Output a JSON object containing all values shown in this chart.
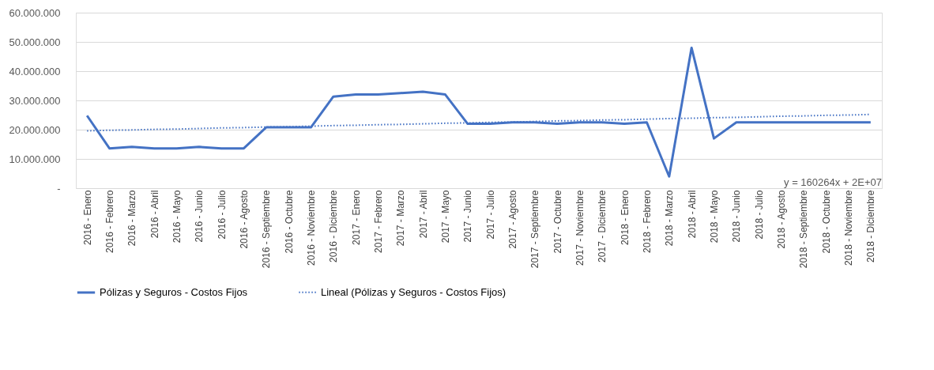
{
  "chart_data": {
    "type": "line",
    "categories": [
      "2016 - Enero",
      "2016 - Febrero",
      "2016 - Marzo",
      "2016 - Abril",
      "2016 - Mayo",
      "2016 - Junio",
      "2016 - Julio",
      "2016 - Agosto",
      "2016 - Septiembre",
      "2016 - Octubre",
      "2016 - Noviembre",
      "2016 - Diciembre",
      "2017 - Enero",
      "2017 - Febrero",
      "2017 - Marzo",
      "2017 - Abril",
      "2017 - Mayo",
      "2017 - Junio",
      "2017 - Julio",
      "2017 - Agosto",
      "2017 - Septiembre",
      "2017 - Octubre",
      "2017 - Noviembre",
      "2017 - Diciembre",
      "2018 - Enero",
      "2018 - Febrero",
      "2018 - Marzo",
      "2018 - Abril",
      "2018 - Mayo",
      "2018 - Junio",
      "2018 - Julio",
      "2018 - Agosto",
      "2018 - Septiembre",
      "2018 - Octubre",
      "2018 - Noviembre",
      "2018 - Diciembre"
    ],
    "series": [
      {
        "name": "Pólizas y Seguros - Costos Fijos",
        "color": "#4472c4",
        "line_style": "solid",
        "values": [
          24800000,
          13600000,
          14100000,
          13600000,
          13600000,
          14100000,
          13600000,
          13600000,
          20800000,
          20800000,
          20800000,
          31300000,
          32000000,
          32000000,
          32500000,
          33000000,
          32000000,
          22000000,
          22000000,
          22500000,
          22500000,
          22000000,
          22500000,
          22500000,
          22000000,
          22500000,
          4000000,
          48000000,
          17000000,
          22500000,
          22500000,
          22500000,
          22500000,
          22500000,
          22500000,
          22500000
        ]
      },
      {
        "name": "Lineal (Pólizas y Seguros - Costos Fijos)",
        "color": "#4472c4",
        "line_style": "dotted",
        "values": [
          19600000,
          19800000,
          19900000,
          20100000,
          20200000,
          20400000,
          20600000,
          20700000,
          20900000,
          21000000,
          21200000,
          21400000,
          21500000,
          21700000,
          21800000,
          22000000,
          22200000,
          22300000,
          22500000,
          22600000,
          22800000,
          23000000,
          23100000,
          23300000,
          23400000,
          23600000,
          23800000,
          23900000,
          24100000,
          24200000,
          24400000,
          24600000,
          24700000,
          24900000,
          25000000,
          25200000
        ]
      }
    ],
    "ylim": [
      0,
      60000000
    ],
    "yticks": [
      {
        "value": 0,
        "label": "-"
      },
      {
        "value": 10000000,
        "label": "10.000.000"
      },
      {
        "value": 20000000,
        "label": "20.000.000"
      },
      {
        "value": 30000000,
        "label": "30.000.000"
      },
      {
        "value": 40000000,
        "label": "40.000.000"
      },
      {
        "value": 50000000,
        "label": "50.000.000"
      },
      {
        "value": 60000000,
        "label": "60.000.000"
      }
    ],
    "grid": "y",
    "legend": "bottom",
    "marker": "none",
    "annotations": [
      "y = 160264x + 2E+07"
    ]
  }
}
